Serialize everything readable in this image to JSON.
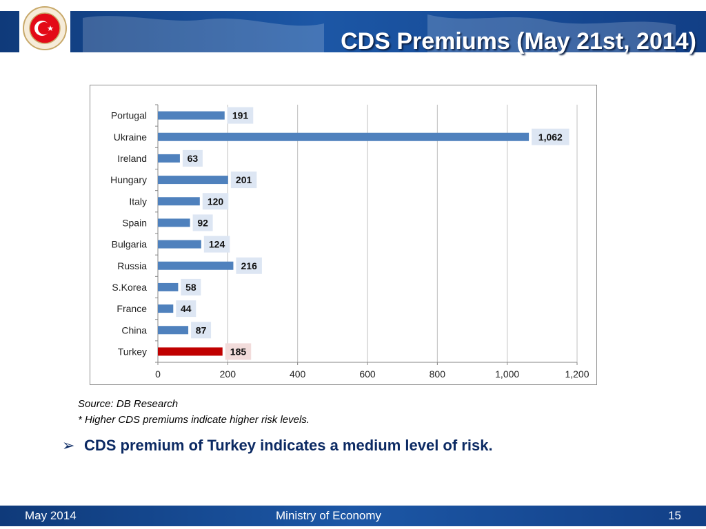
{
  "header": {
    "title": "CDS Premiums (May 21st, 2014)",
    "logo_icon": "republic-of-turkey-ministry-of-economy-seal",
    "logo_ring_text": "REPUBLIC OF TURKEY · MINISTRY OF ECONOMY"
  },
  "chart_data": {
    "type": "bar",
    "orientation": "horizontal",
    "categories": [
      "Portugal",
      "Ukraine",
      "Ireland",
      "Hungary",
      "Italy",
      "Spain",
      "Bulgaria",
      "Russia",
      "S.Korea",
      "France",
      "China",
      "Turkey"
    ],
    "values": [
      191,
      1062,
      63,
      201,
      120,
      92,
      124,
      216,
      58,
      44,
      87,
      185
    ],
    "value_labels": [
      "191",
      "1,062",
      "63",
      "201",
      "120",
      "92",
      "124",
      "216",
      "58",
      "44",
      "87",
      "185"
    ],
    "xlim": [
      0,
      1200
    ],
    "x_ticks": [
      0,
      200,
      400,
      600,
      800,
      1000,
      1200
    ],
    "x_tick_labels": [
      "0",
      "200",
      "400",
      "600",
      "800",
      "1,000",
      "1,200"
    ],
    "grid": true,
    "legend": "none",
    "colors": {
      "default": "#4f81bd",
      "highlight": "#c00000",
      "label_bg": "#dde6f3",
      "highlight_label_bg": "#f2dcdb"
    },
    "highlight_category": "Turkey"
  },
  "notes": {
    "source": "Source: DB Research",
    "footnote": "* Higher CDS premiums indicate higher risk levels."
  },
  "bullet": {
    "icon": "arrow-bullet-icon",
    "text": "CDS premium of Turkey indicates a medium level of risk."
  },
  "footer": {
    "date": "May 2014",
    "org": "Ministry of Economy",
    "page": "15"
  }
}
